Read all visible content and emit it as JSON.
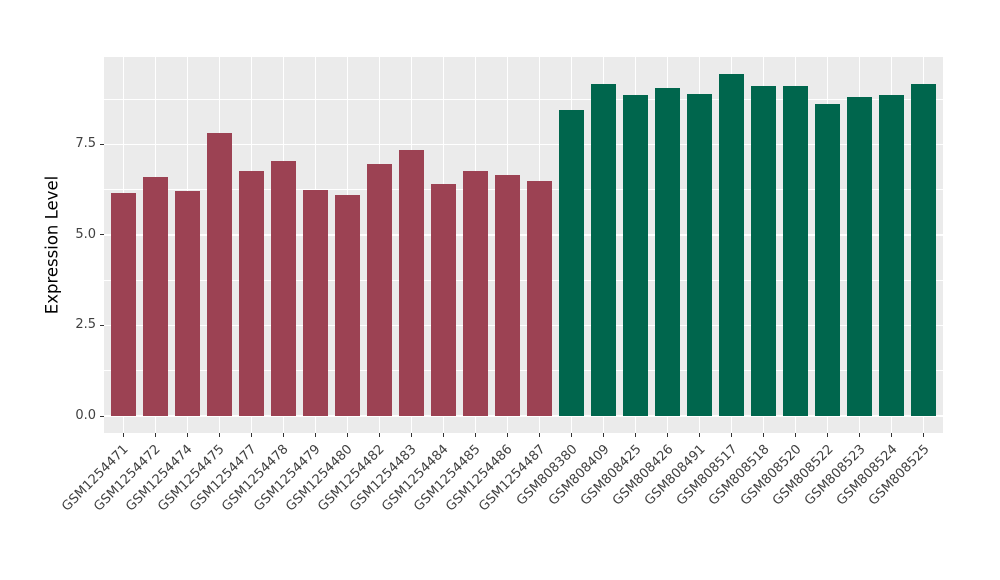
{
  "figure": {
    "background": "#FFFFFF",
    "panel_background": "#EBEBEB",
    "grid_color": "#FFFFFF",
    "tick_mark_color": "#333333",
    "axis_text_color": "#404040",
    "axis_title_color": "#000000"
  },
  "chart_data": {
    "type": "bar",
    "title": "",
    "xlabel": "",
    "ylabel": "Expression Level",
    "grid": true,
    "legend": "none",
    "ylim": [
      -0.47,
      9.91
    ],
    "yticks": [
      0,
      2.5,
      5,
      7.5
    ],
    "ytick_labels": [
      "0.0",
      "2.5",
      "5.0",
      "7.5"
    ],
    "minor_yticks": [
      1.25,
      3.75,
      6.25,
      8.75
    ],
    "categories": [
      "GSM1254471",
      "GSM1254472",
      "GSM1254474",
      "GSM1254475",
      "GSM1254477",
      "GSM1254478",
      "GSM1254479",
      "GSM1254480",
      "GSM1254482",
      "GSM1254483",
      "GSM1254484",
      "GSM1254485",
      "GSM1254486",
      "GSM1254487",
      "GSM808380",
      "GSM808409",
      "GSM808425",
      "GSM808426",
      "GSM808491",
      "GSM808517",
      "GSM808518",
      "GSM808520",
      "GSM808522",
      "GSM808523",
      "GSM808524",
      "GSM808525"
    ],
    "values": [
      6.15,
      6.6,
      6.2,
      7.8,
      6.75,
      7.05,
      6.25,
      6.1,
      6.95,
      7.35,
      6.4,
      6.75,
      6.65,
      6.5,
      8.45,
      9.15,
      8.85,
      9.05,
      8.9,
      9.45,
      9.1,
      9.1,
      8.6,
      8.8,
      8.85,
      9.15
    ],
    "bar_groups": [
      "group1",
      "group1",
      "group1",
      "group1",
      "group1",
      "group1",
      "group1",
      "group1",
      "group1",
      "group1",
      "group1",
      "group1",
      "group1",
      "group1",
      "group2",
      "group2",
      "group2",
      "group2",
      "group2",
      "group2",
      "group2",
      "group2",
      "group2",
      "group2",
      "group2",
      "group2"
    ],
    "group_colors": {
      "group1": "#9C4253",
      "group2": "#00664D"
    }
  }
}
